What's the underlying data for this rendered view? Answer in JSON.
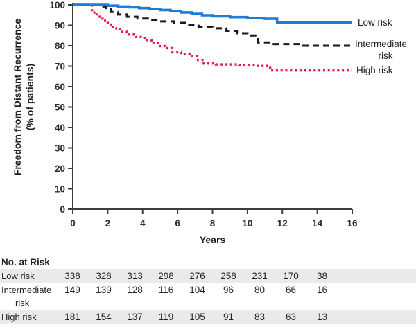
{
  "chart": {
    "ylabel_line1": "Freedom from Distant Recurrence",
    "ylabel_line2": "(% of patients)",
    "xlabel": "Years"
  },
  "legend": {
    "low": "Low risk",
    "intermediate_line1": "Intermediate",
    "intermediate_line2": "risk",
    "high": "High risk"
  },
  "colors": {
    "low_risk": "#1d7cd6",
    "intermediate_risk": "#1a1a1a",
    "high_risk": "#e8194a",
    "axis": "#3d3d3d",
    "row_shade": "#e8ebe8"
  },
  "risk_table": {
    "title": "No. at Risk",
    "rows": [
      {
        "label": "Low risk",
        "label2": "",
        "shaded": true,
        "values": [
          "338",
          "328",
          "313",
          "298",
          "276",
          "258",
          "231",
          "170",
          "38"
        ]
      },
      {
        "label": "Intermediate",
        "label2": "risk",
        "shaded": false,
        "values": [
          "149",
          "139",
          "128",
          "116",
          "104",
          "96",
          "80",
          "66",
          "16"
        ]
      },
      {
        "label": "High risk",
        "label2": "",
        "shaded": true,
        "values": [
          "181",
          "154",
          "137",
          "119",
          "105",
          "91",
          "83",
          "63",
          "13"
        ]
      }
    ]
  },
  "chart_data": {
    "type": "line",
    "subtype": "kaplan-meier-step",
    "title": "",
    "xlabel": "Years",
    "ylabel": "Freedom from Distant Recurrence (% of patients)",
    "xlim": [
      0,
      16
    ],
    "ylim": [
      0,
      100
    ],
    "x_ticks": [
      0,
      2,
      4,
      6,
      8,
      10,
      12,
      14,
      16
    ],
    "y_ticks": [
      0,
      10,
      20,
      30,
      40,
      50,
      60,
      70,
      80,
      90,
      100
    ],
    "grid": false,
    "legend_position": "right",
    "series": [
      {
        "name": "High risk",
        "color": "#e8194a",
        "style": "dotted",
        "points": [
          [
            0,
            100
          ],
          [
            0.8,
            100
          ],
          [
            1.1,
            96.2
          ],
          [
            1.4,
            94.2
          ],
          [
            1.7,
            92.2
          ],
          [
            2.0,
            90.3
          ],
          [
            2.3,
            88.5
          ],
          [
            2.7,
            86.8
          ],
          [
            3.1,
            85.5
          ],
          [
            3.6,
            84.3
          ],
          [
            4.1,
            82.8
          ],
          [
            4.5,
            81.3
          ],
          [
            4.9,
            79.8
          ],
          [
            5.3,
            78.8
          ],
          [
            5.7,
            76.8
          ],
          [
            6.2,
            75.8
          ],
          [
            6.7,
            74.8
          ],
          [
            7.1,
            73.0
          ],
          [
            7.5,
            71.3
          ],
          [
            8.2,
            70.8
          ],
          [
            9.5,
            70.4
          ],
          [
            10.5,
            70.1
          ],
          [
            11.3,
            67.9
          ],
          [
            16,
            67.9
          ]
        ]
      },
      {
        "name": "Intermediate risk",
        "color": "#1a1a1a",
        "style": "dashed",
        "points": [
          [
            0,
            100
          ],
          [
            1.2,
            100
          ],
          [
            1.5,
            99.2
          ],
          [
            1.9,
            97.8
          ],
          [
            2.2,
            96.5
          ],
          [
            2.6,
            95.3
          ],
          [
            3.1,
            94.2
          ],
          [
            3.7,
            93.3
          ],
          [
            4.3,
            92.6
          ],
          [
            5,
            91.9
          ],
          [
            5.8,
            91.2
          ],
          [
            6.5,
            90.3
          ],
          [
            7.2,
            89.3
          ],
          [
            8,
            88.5
          ],
          [
            8.8,
            87.3
          ],
          [
            9.4,
            86.1
          ],
          [
            10,
            85.0
          ],
          [
            10.6,
            81.6
          ],
          [
            11.5,
            80.8
          ],
          [
            13,
            80.0
          ],
          [
            16,
            79.8
          ]
        ]
      },
      {
        "name": "Low risk",
        "color": "#1d7cd6",
        "style": "solid",
        "points": [
          [
            0,
            100
          ],
          [
            1.5,
            100
          ],
          [
            2,
            99.6
          ],
          [
            2.6,
            99.2
          ],
          [
            3.2,
            98.8
          ],
          [
            3.8,
            98.4
          ],
          [
            4.4,
            98.0
          ],
          [
            5,
            97.5
          ],
          [
            5.6,
            97.0
          ],
          [
            6.2,
            96.3
          ],
          [
            6.8,
            95.6
          ],
          [
            7.4,
            94.9
          ],
          [
            8,
            94.4
          ],
          [
            9,
            94.0
          ],
          [
            10,
            93.6
          ],
          [
            11,
            93.2
          ],
          [
            11.7,
            91.3
          ],
          [
            16,
            91.3
          ]
        ]
      }
    ],
    "number_at_risk": {
      "times": [
        0,
        2,
        4,
        6,
        8,
        10,
        12,
        14,
        16
      ],
      "Low risk": [
        338,
        328,
        313,
        298,
        276,
        258,
        231,
        170,
        38
      ],
      "Intermediate risk": [
        149,
        139,
        128,
        116,
        104,
        96,
        80,
        66,
        16
      ],
      "High risk": [
        181,
        154,
        137,
        119,
        105,
        91,
        83,
        63,
        13
      ]
    }
  }
}
